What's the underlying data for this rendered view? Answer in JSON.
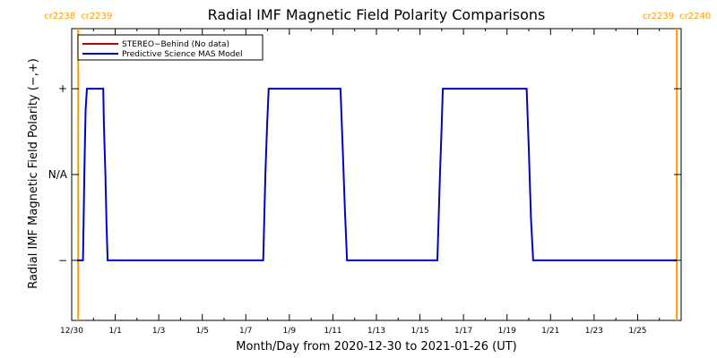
{
  "chart_data": {
    "type": "line",
    "title": "Radial IMF Magnetic Field Polarity Comparisons",
    "xlabel": "Month/Day from 2020-12-30 to 2021-01-26 (UT)",
    "ylabel": "Radial IMF Magnetic Field Polarity (−,+)",
    "x_range": [
      "2020-12-30",
      "2021-01-26"
    ],
    "xlim_days": [
      0,
      28
    ],
    "ylim": [
      -1.7,
      1.7
    ],
    "y_ticks": [
      {
        "value": 1,
        "label": "+"
      },
      {
        "value": 0,
        "label": "N/A"
      },
      {
        "value": -1,
        "label": "−"
      }
    ],
    "x_ticks": [
      {
        "day": 0,
        "label": "12/30"
      },
      {
        "day": 2,
        "label": "1/1"
      },
      {
        "day": 4,
        "label": "1/3"
      },
      {
        "day": 6,
        "label": "1/5"
      },
      {
        "day": 8,
        "label": "1/7"
      },
      {
        "day": 10,
        "label": "1/9"
      },
      {
        "day": 12,
        "label": "1/11"
      },
      {
        "day": 14,
        "label": "1/13"
      },
      {
        "day": 16,
        "label": "1/15"
      },
      {
        "day": 18,
        "label": "1/17"
      },
      {
        "day": 20,
        "label": "1/19"
      },
      {
        "day": 22,
        "label": "1/21"
      },
      {
        "day": 24,
        "label": "1/23"
      },
      {
        "day": 26,
        "label": "1/25"
      }
    ],
    "carrington_markers": [
      {
        "day": 0.3,
        "labels": [
          "cr2238",
          "cr2239"
        ]
      },
      {
        "day": 27.8,
        "labels": [
          "cr2239",
          "cr2240"
        ]
      }
    ],
    "legend": {
      "position": "top-left"
    },
    "series": [
      {
        "name": "STEREO−Behind (No data)",
        "color": "#c00000",
        "points": []
      },
      {
        "name": "Predictive Science MAS Model",
        "color": "#0000cc",
        "points": [
          [
            0.25,
            -1
          ],
          [
            0.52,
            -1
          ],
          [
            0.58,
            0.0
          ],
          [
            0.64,
            0.75
          ],
          [
            0.7,
            1
          ],
          [
            1.45,
            1
          ],
          [
            1.48,
            0.6
          ],
          [
            1.55,
            0.0
          ],
          [
            1.6,
            -0.6
          ],
          [
            1.65,
            -1
          ],
          [
            8.8,
            -1
          ],
          [
            8.9,
            0.0
          ],
          [
            8.98,
            0.6
          ],
          [
            9.05,
            1
          ],
          [
            12.35,
            1
          ],
          [
            12.45,
            0.3
          ],
          [
            12.55,
            -0.4
          ],
          [
            12.65,
            -1
          ],
          [
            16.8,
            -1
          ],
          [
            16.92,
            0.0
          ],
          [
            17.0,
            0.6
          ],
          [
            17.05,
            1
          ],
          [
            20.9,
            1
          ],
          [
            21.0,
            0.3
          ],
          [
            21.1,
            -0.5
          ],
          [
            21.2,
            -1
          ],
          [
            27.8,
            -1
          ]
        ]
      }
    ],
    "marker_color": "#ff9900"
  }
}
